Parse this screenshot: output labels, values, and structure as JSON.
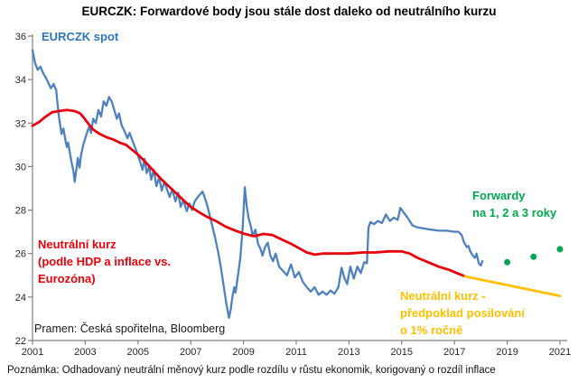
{
  "title": "EURCZK: Forwardové body jsou stále dost daleko od neutrálního kurzu",
  "footnote": "Poznámka: Odhadovaný neutrální měnový kurz podle rozdílu v růstu ekonomik, korigovaný o rozdíl inflace",
  "labels": {
    "spot": "EURCZK spot",
    "neutral": "Neutrální kurz\n(podle HDP a inflace vs.\nEurozóna)",
    "forwards": "Forwardy\nna 1, 2 a 3 roky",
    "forecast": "Neutrální kurz -\npředpoklad posilování\no 1% ročně",
    "source": "Pramen: Česká spořitelna, Bloomberg"
  },
  "colors": {
    "spot_line": "#4f81bd",
    "spot_label": "#2e75b6",
    "neutral_line": "#e8000d",
    "forecast_line": "#ffc000",
    "forwards_dots": "#00a551",
    "axis": "#808080",
    "tick_text": "#262626"
  },
  "chart_data": {
    "type": "line",
    "title": "EURCZK: Forwardové body jsou stále dost daleko od neutrálního kurzu",
    "xlabel": "",
    "ylabel": "EURCZK",
    "grid": false,
    "legend_position": "inline-annotations",
    "x_axis": {
      "min": 2001,
      "max": 2021.3,
      "ticks": [
        2001,
        2003,
        2005,
        2007,
        2009,
        2011,
        2013,
        2015,
        2017,
        2019,
        2021
      ]
    },
    "y_axis": {
      "min": 22,
      "max": 36,
      "ticks": [
        22,
        24,
        26,
        28,
        30,
        32,
        34,
        36
      ]
    },
    "series": [
      {
        "id": "eurczk-spot-line",
        "name": "EURCZK spot",
        "type": "line",
        "color": "#4f81bd",
        "width": 2.3,
        "points": [
          [
            2001.0,
            35.35
          ],
          [
            2001.05,
            35.05
          ],
          [
            2001.1,
            34.75
          ],
          [
            2001.2,
            34.45
          ],
          [
            2001.3,
            34.6
          ],
          [
            2001.4,
            34.3
          ],
          [
            2001.5,
            34.1
          ],
          [
            2001.6,
            33.85
          ],
          [
            2001.7,
            33.6
          ],
          [
            2001.8,
            33.8
          ],
          [
            2001.9,
            33.5
          ],
          [
            2001.95,
            32.9
          ],
          [
            2002.0,
            32.3
          ],
          [
            2002.05,
            31.9
          ],
          [
            2002.1,
            31.5
          ],
          [
            2002.17,
            31.75
          ],
          [
            2002.25,
            31.2
          ],
          [
            2002.3,
            30.9
          ],
          [
            2002.35,
            31.1
          ],
          [
            2002.42,
            30.6
          ],
          [
            2002.48,
            30.2
          ],
          [
            2002.55,
            29.8
          ],
          [
            2002.6,
            29.3
          ],
          [
            2002.67,
            29.95
          ],
          [
            2002.72,
            30.4
          ],
          [
            2002.78,
            29.95
          ],
          [
            2002.85,
            30.6
          ],
          [
            2002.95,
            31.1
          ],
          [
            2003.05,
            31.5
          ],
          [
            2003.15,
            31.85
          ],
          [
            2003.22,
            31.55
          ],
          [
            2003.3,
            32.2
          ],
          [
            2003.4,
            32.0
          ],
          [
            2003.5,
            32.6
          ],
          [
            2003.6,
            32.3
          ],
          [
            2003.7,
            33.0
          ],
          [
            2003.8,
            32.8
          ],
          [
            2003.9,
            33.2
          ],
          [
            2004.0,
            33.0
          ],
          [
            2004.1,
            32.6
          ],
          [
            2004.2,
            32.2
          ],
          [
            2004.28,
            32.45
          ],
          [
            2004.38,
            31.9
          ],
          [
            2004.5,
            31.6
          ],
          [
            2004.6,
            31.3
          ],
          [
            2004.68,
            31.55
          ],
          [
            2004.8,
            31.15
          ],
          [
            2004.9,
            30.85
          ],
          [
            2005.0,
            30.5
          ],
          [
            2005.1,
            30.15
          ],
          [
            2005.17,
            29.85
          ],
          [
            2005.25,
            30.35
          ],
          [
            2005.33,
            29.7
          ],
          [
            2005.42,
            30.0
          ],
          [
            2005.5,
            29.4
          ],
          [
            2005.6,
            29.85
          ],
          [
            2005.7,
            29.1
          ],
          [
            2005.8,
            29.5
          ],
          [
            2005.9,
            28.9
          ],
          [
            2006.0,
            29.3
          ],
          [
            2006.1,
            28.95
          ],
          [
            2006.2,
            28.6
          ],
          [
            2006.3,
            28.95
          ],
          [
            2006.42,
            28.4
          ],
          [
            2006.52,
            28.8
          ],
          [
            2006.62,
            28.15
          ],
          [
            2006.72,
            28.45
          ],
          [
            2006.85,
            27.95
          ],
          [
            2006.95,
            28.3
          ],
          [
            2007.05,
            28.0
          ],
          [
            2007.15,
            28.4
          ],
          [
            2007.3,
            28.65
          ],
          [
            2007.45,
            28.85
          ],
          [
            2007.55,
            28.5
          ],
          [
            2007.65,
            28.1
          ],
          [
            2007.75,
            27.6
          ],
          [
            2007.85,
            27.1
          ],
          [
            2007.95,
            26.6
          ],
          [
            2008.05,
            26.0
          ],
          [
            2008.15,
            25.3
          ],
          [
            2008.25,
            24.5
          ],
          [
            2008.35,
            23.7
          ],
          [
            2008.45,
            23.05
          ],
          [
            2008.52,
            23.45
          ],
          [
            2008.58,
            24.0
          ],
          [
            2008.65,
            24.45
          ],
          [
            2008.7,
            24.2
          ],
          [
            2008.78,
            24.9
          ],
          [
            2008.88,
            25.8
          ],
          [
            2008.97,
            27.2
          ],
          [
            2009.05,
            29.05
          ],
          [
            2009.12,
            28.2
          ],
          [
            2009.2,
            27.6
          ],
          [
            2009.28,
            27.25
          ],
          [
            2009.35,
            26.8
          ],
          [
            2009.45,
            27.1
          ],
          [
            2009.55,
            26.45
          ],
          [
            2009.65,
            26.2
          ],
          [
            2009.72,
            25.9
          ],
          [
            2009.82,
            26.3
          ],
          [
            2009.92,
            26.5
          ],
          [
            2010.02,
            25.9
          ],
          [
            2010.12,
            25.65
          ],
          [
            2010.22,
            26.0
          ],
          [
            2010.35,
            25.4
          ],
          [
            2010.5,
            25.2
          ],
          [
            2010.65,
            25.0
          ],
          [
            2010.8,
            25.5
          ],
          [
            2010.95,
            24.9
          ],
          [
            2011.1,
            25.15
          ],
          [
            2011.25,
            24.7
          ],
          [
            2011.4,
            24.45
          ],
          [
            2011.55,
            24.25
          ],
          [
            2011.7,
            24.45
          ],
          [
            2011.85,
            24.1
          ],
          [
            2012.0,
            24.25
          ],
          [
            2012.15,
            24.1
          ],
          [
            2012.3,
            24.3
          ],
          [
            2012.45,
            24.15
          ],
          [
            2012.6,
            24.45
          ],
          [
            2012.72,
            25.35
          ],
          [
            2012.82,
            24.9
          ],
          [
            2012.93,
            24.6
          ],
          [
            2013.05,
            25.4
          ],
          [
            2013.18,
            24.85
          ],
          [
            2013.32,
            25.4
          ],
          [
            2013.45,
            25.1
          ],
          [
            2013.58,
            25.6
          ],
          [
            2013.68,
            25.55
          ],
          [
            2013.74,
            27.2
          ],
          [
            2013.82,
            27.45
          ],
          [
            2013.95,
            27.35
          ],
          [
            2014.1,
            27.5
          ],
          [
            2014.25,
            27.4
          ],
          [
            2014.4,
            27.8
          ],
          [
            2014.55,
            27.5
          ],
          [
            2014.7,
            27.65
          ],
          [
            2014.85,
            27.55
          ],
          [
            2014.95,
            28.1
          ],
          [
            2015.1,
            27.85
          ],
          [
            2015.25,
            27.6
          ],
          [
            2015.4,
            27.3
          ],
          [
            2015.6,
            27.2
          ],
          [
            2015.85,
            27.15
          ],
          [
            2016.1,
            27.1
          ],
          [
            2016.4,
            27.05
          ],
          [
            2016.7,
            27.05
          ],
          [
            2017.0,
            27.0
          ],
          [
            2017.15,
            27.0
          ],
          [
            2017.27,
            26.85
          ],
          [
            2017.37,
            26.5
          ],
          [
            2017.47,
            26.3
          ],
          [
            2017.53,
            26.35
          ],
          [
            2017.6,
            26.1
          ],
          [
            2017.7,
            25.9
          ],
          [
            2017.78,
            25.8
          ],
          [
            2017.84,
            26.0
          ],
          [
            2017.92,
            25.55
          ],
          [
            2018.0,
            25.45
          ],
          [
            2018.06,
            25.65
          ]
        ]
      },
      {
        "id": "neutral-rate-line",
        "name": "Neutrální kurz (podle HDP a inflace vs. Eurozóna)",
        "type": "line",
        "color": "#e8000d",
        "width": 2.8,
        "points": [
          [
            2001.0,
            31.88
          ],
          [
            2001.25,
            32.05
          ],
          [
            2001.5,
            32.3
          ],
          [
            2001.75,
            32.5
          ],
          [
            2002.0,
            32.55
          ],
          [
            2002.3,
            32.6
          ],
          [
            2002.6,
            32.55
          ],
          [
            2002.8,
            32.45
          ],
          [
            2002.95,
            32.25
          ],
          [
            2003.1,
            32.0
          ],
          [
            2003.3,
            31.7
          ],
          [
            2003.55,
            31.5
          ],
          [
            2003.8,
            31.35
          ],
          [
            2004.05,
            31.25
          ],
          [
            2004.3,
            31.1
          ],
          [
            2004.55,
            31.0
          ],
          [
            2004.8,
            30.75
          ],
          [
            2005.0,
            30.55
          ],
          [
            2005.25,
            30.25
          ],
          [
            2005.55,
            29.85
          ],
          [
            2005.9,
            29.4
          ],
          [
            2006.25,
            29.0
          ],
          [
            2006.6,
            28.6
          ],
          [
            2006.95,
            28.2
          ],
          [
            2007.25,
            27.95
          ],
          [
            2007.6,
            27.7
          ],
          [
            2007.95,
            27.5
          ],
          [
            2008.3,
            27.25
          ],
          [
            2008.7,
            27.05
          ],
          [
            2009.05,
            26.9
          ],
          [
            2009.4,
            26.8
          ],
          [
            2009.75,
            26.9
          ],
          [
            2010.1,
            26.85
          ],
          [
            2010.45,
            26.65
          ],
          [
            2010.8,
            26.45
          ],
          [
            2011.1,
            26.25
          ],
          [
            2011.4,
            26.05
          ],
          [
            2011.7,
            25.95
          ],
          [
            2012.0,
            26.0
          ],
          [
            2012.5,
            26.0
          ],
          [
            2013.0,
            26.0
          ],
          [
            2013.5,
            26.05
          ],
          [
            2014.0,
            26.05
          ],
          [
            2014.5,
            26.1
          ],
          [
            2015.0,
            26.1
          ],
          [
            2015.3,
            26.0
          ],
          [
            2015.6,
            25.8
          ],
          [
            2016.0,
            25.6
          ],
          [
            2016.4,
            25.4
          ],
          [
            2016.8,
            25.25
          ],
          [
            2017.1,
            25.1
          ],
          [
            2017.4,
            24.95
          ]
        ]
      },
      {
        "id": "neutral-forecast-line",
        "name": "Neutrální kurz - předpoklad posilování o 1% ročně",
        "type": "line",
        "color": "#ffc000",
        "width": 2.8,
        "points": [
          [
            2017.4,
            24.95
          ],
          [
            2018.0,
            24.8
          ],
          [
            2019.0,
            24.55
          ],
          [
            2020.0,
            24.3
          ],
          [
            2021.0,
            24.05
          ]
        ]
      },
      {
        "id": "forward-dots",
        "name": "Forwardy na 1, 2 a 3 roky",
        "type": "scatter",
        "color": "#00a551",
        "radius": 3.5,
        "points": [
          [
            2019.0,
            25.6
          ],
          [
            2020.0,
            25.85
          ],
          [
            2021.0,
            26.2
          ]
        ]
      }
    ]
  }
}
